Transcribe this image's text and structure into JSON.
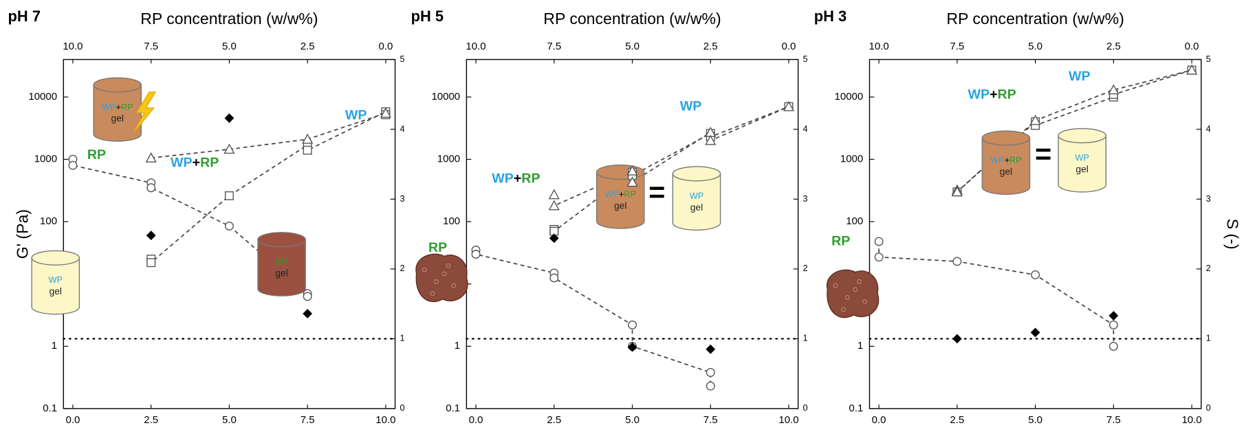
{
  "chart_data": [
    {
      "type": "scatter",
      "title": "pH 7",
      "x2label": "RP concentration (w/w%)",
      "ylabel": "G' (Pa)",
      "log_y": true,
      "xlim": [
        -0.3,
        10.3
      ],
      "xticks": [
        {
          "value": 0,
          "label": "0.0"
        },
        2.5,
        {
          "value": 5,
          "label": "5.0"
        },
        7.5,
        {
          "value": 10,
          "label": "10.0"
        }
      ],
      "x2lim": [
        10.3,
        -0.3
      ],
      "x2ticks": [
        {
          "value": 10,
          "label": "10.0"
        },
        7.5,
        {
          "value": 5,
          "label": "5.0"
        },
        2.5,
        {
          "value": 0,
          "label": "0.0"
        }
      ],
      "ylim": [
        0.1,
        40000
      ],
      "yticks": [
        0.1,
        1,
        10,
        100,
        1000,
        10000
      ],
      "y2lim": [
        0,
        5
      ],
      "y2ticks": [
        0,
        1,
        2,
        3,
        4,
        5
      ],
      "y2_reference_line": 1,
      "series": [
        {
          "marker": "circle",
          "color": "#555555",
          "line": "dashed",
          "x": [
            0,
            0,
            2.5,
            2.5,
            5,
            7.5,
            7.5
          ],
          "values": [
            1000,
            800,
            420,
            350,
            85,
            7,
            6.3
          ]
        },
        {
          "marker": "square",
          "color": "#555555",
          "line": "dashed",
          "x": [
            2.5,
            2.5,
            5,
            7.5,
            7.5,
            10,
            10
          ],
          "values": [
            25,
            22,
            260,
            1700,
            1400,
            5800,
            5200
          ]
        },
        {
          "marker": "triangle",
          "color": "#555555",
          "line": "dashed",
          "x": [
            2.5,
            5,
            7.5,
            10
          ],
          "values": [
            1050,
            1450,
            2100,
            5500
          ]
        },
        {
          "marker": "diamond",
          "color": "#000000",
          "axis": "y2",
          "x": [
            2.5,
            5,
            7.5
          ],
          "values": [
            2.48,
            4.16,
            1.36
          ]
        }
      ],
      "labels": [
        {
          "parts": [
            {
              "text": "RP",
              "color": "#2e9e2e"
            }
          ]
        },
        {
          "parts": [
            {
              "text": "WP",
              "color": "#29a3e0"
            }
          ]
        },
        {
          "parts": [
            {
              "text": "WP",
              "color": "#29a3e0"
            },
            {
              "text": "+",
              "color": "#000000"
            },
            {
              "text": "RP",
              "color": "#2e9e2e"
            }
          ]
        }
      ],
      "illustrations": [
        {
          "shape": "cylinder",
          "color": "#c98a5e",
          "bolt": true,
          "caption": "gel",
          "parts": [
            {
              "text": "WP",
              "color": "#29a3e0"
            },
            {
              "text": "+",
              "color": "#000000"
            },
            {
              "text": "RP",
              "color": "#2e9e2e"
            }
          ]
        },
        {
          "shape": "cylinder",
          "color": "#9b5040",
          "caption": "gel",
          "parts": [
            {
              "text": "RP",
              "color": "#2e9e2e"
            }
          ]
        },
        {
          "shape": "cylinder",
          "color": "#fdf7c8",
          "caption": "gel",
          "parts": [
            {
              "text": "WP",
              "color": "#29a3e0"
            }
          ]
        }
      ]
    },
    {
      "type": "scatter",
      "title": "pH 5",
      "x2label": "RP concentration (w/w%)",
      "log_y": true,
      "xlim": [
        -0.3,
        10.3
      ],
      "xticks": [
        {
          "value": 0,
          "label": "0.0"
        },
        2.5,
        {
          "value": 5,
          "label": "5.0"
        },
        7.5,
        {
          "value": 10,
          "label": "10.0"
        }
      ],
      "x2lim": [
        10.3,
        -0.3
      ],
      "x2ticks": [
        {
          "value": 10,
          "label": "10.0"
        },
        7.5,
        {
          "value": 5,
          "label": "5.0"
        },
        2.5,
        {
          "value": 0,
          "label": "0.0"
        }
      ],
      "ylim": [
        0.1,
        40000
      ],
      "yticks": [
        0.1,
        1,
        10,
        100,
        1000,
        10000
      ],
      "y2lim": [
        0,
        5
      ],
      "y2ticks": [
        0,
        1,
        2,
        3,
        4,
        5
      ],
      "y2_reference_line": 1,
      "series": [
        {
          "marker": "circle",
          "color": "#555555",
          "line": "dashed",
          "x": [
            0,
            0,
            2.5,
            2.5,
            5,
            5,
            7.5,
            7.5
          ],
          "values": [
            35,
            30,
            15,
            12.5,
            2.2,
            1.0,
            0.38,
            0.23
          ]
        },
        {
          "marker": "square",
          "color": "#555555",
          "line": "dashed",
          "x": [
            2.5,
            2.5,
            5,
            5,
            7.5,
            7.5,
            10
          ],
          "values": [
            75,
            70,
            620,
            550,
            2600,
            2300,
            7000
          ]
        },
        {
          "marker": "triangle",
          "color": "#555555",
          "line": "dashed",
          "x": [
            2.5,
            2.5,
            5,
            5,
            7.5,
            7.5,
            10
          ],
          "values": [
            270,
            180,
            650,
            430,
            2700,
            2000,
            7000
          ]
        },
        {
          "marker": "diamond",
          "color": "#000000",
          "axis": "y2",
          "x": [
            2.5,
            5,
            7.5
          ],
          "values": [
            2.44,
            0.88,
            0.85
          ]
        }
      ],
      "labels": [
        {
          "parts": [
            {
              "text": "RP",
              "color": "#2e9e2e"
            }
          ]
        },
        {
          "parts": [
            {
              "text": "WP",
              "color": "#29a3e0"
            }
          ]
        },
        {
          "parts": [
            {
              "text": "WP",
              "color": "#29a3e0"
            },
            {
              "text": "+",
              "color": "#000000"
            },
            {
              "text": "RP",
              "color": "#2e9e2e"
            }
          ]
        }
      ],
      "illustrations": [
        {
          "shape": "aggregate",
          "color": "#8b4a3a"
        },
        {
          "shape": "cylinder",
          "color": "#c98a5e",
          "caption": "gel",
          "parts": [
            {
              "text": "WP",
              "color": "#29a3e0"
            },
            {
              "text": "+",
              "color": "#000000"
            },
            {
              "text": "RP",
              "color": "#2e9e2e"
            }
          ]
        },
        {
          "shape": "sign",
          "text": "="
        },
        {
          "shape": "cylinder",
          "color": "#fdf7c8",
          "caption": "gel",
          "parts": [
            {
              "text": "WP",
              "color": "#29a3e0"
            }
          ]
        }
      ]
    },
    {
      "type": "scatter",
      "title": "pH 3",
      "x2label": "RP concentration (w/w%)",
      "y2label": "S (-)",
      "log_y": true,
      "xlim": [
        -0.3,
        10.3
      ],
      "xticks": [
        {
          "value": 0,
          "label": "0.0"
        },
        2.5,
        {
          "value": 5,
          "label": "5.0"
        },
        7.5,
        {
          "value": 10,
          "label": "10.0"
        }
      ],
      "x2lim": [
        10.3,
        -0.3
      ],
      "x2ticks": [
        {
          "value": 10,
          "label": "10.0"
        },
        7.5,
        {
          "value": 5,
          "label": "5.0"
        },
        2.5,
        {
          "value": 0,
          "label": "0.0"
        }
      ],
      "ylim": [
        0.1,
        40000
      ],
      "yticks": [
        0.1,
        1,
        10,
        100,
        1000,
        10000
      ],
      "y2lim": [
        0,
        5
      ],
      "y2ticks": [
        0,
        1,
        2,
        3,
        4,
        5
      ],
      "y2_reference_line": 1,
      "series": [
        {
          "marker": "circle",
          "color": "#555555",
          "line": "dashed",
          "x": [
            0,
            0,
            2.5,
            5,
            7.5,
            7.5
          ],
          "values": [
            48,
            27,
            23,
            14,
            2.2,
            1.0
          ]
        },
        {
          "marker": "square",
          "color": "#555555",
          "line": "dashed",
          "x": [
            2.5,
            5,
            5,
            7.5,
            7.5,
            10
          ],
          "values": [
            300,
            4000,
            3500,
            10000,
            11000,
            27000
          ]
        },
        {
          "marker": "triangle",
          "color": "#555555",
          "line": "dashed",
          "x": [
            2.5,
            2.5,
            5,
            7.5,
            10
          ],
          "values": [
            320,
            300,
            4200,
            13000,
            27000
          ]
        },
        {
          "marker": "diamond",
          "color": "#000000",
          "axis": "y2",
          "x": [
            2.5,
            5,
            7.5
          ],
          "values": [
            1.0,
            1.09,
            1.33
          ]
        }
      ],
      "labels": [
        {
          "parts": [
            {
              "text": "RP",
              "color": "#2e9e2e"
            }
          ]
        },
        {
          "parts": [
            {
              "text": "WP",
              "color": "#29a3e0"
            }
          ]
        },
        {
          "parts": [
            {
              "text": "WP",
              "color": "#29a3e0"
            },
            {
              "text": "+",
              "color": "#000000"
            },
            {
              "text": "RP",
              "color": "#2e9e2e"
            }
          ]
        }
      ],
      "illustrations": [
        {
          "shape": "aggregate",
          "color": "#8b4a3a"
        },
        {
          "shape": "cylinder",
          "color": "#c98a5e",
          "caption": "gel",
          "parts": [
            {
              "text": "WP",
              "color": "#29a3e0"
            },
            {
              "text": "+",
              "color": "#000000"
            },
            {
              "text": "RP",
              "color": "#2e9e2e"
            }
          ]
        },
        {
          "shape": "sign",
          "text": "="
        },
        {
          "shape": "cylinder",
          "color": "#fdf7c8",
          "caption": "gel",
          "parts": [
            {
              "text": "WP",
              "color": "#29a3e0"
            }
          ]
        }
      ]
    }
  ]
}
